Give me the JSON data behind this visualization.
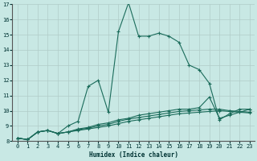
{
  "xlabel": "Humidex (Indice chaleur)",
  "xlim": [
    -0.5,
    23.5
  ],
  "ylim": [
    8,
    17
  ],
  "xticks": [
    0,
    1,
    2,
    3,
    4,
    5,
    6,
    7,
    8,
    9,
    10,
    11,
    12,
    13,
    14,
    15,
    16,
    17,
    18,
    19,
    20,
    21,
    22,
    23
  ],
  "yticks": [
    8,
    9,
    10,
    11,
    12,
    13,
    14,
    15,
    16,
    17
  ],
  "bg_color": "#c8e8e4",
  "line_color": "#1a6b5a",
  "grid_color": "#b0ccc8",
  "lines": [
    {
      "x": [
        0,
        1,
        2,
        3,
        4,
        5,
        6,
        7,
        8,
        9,
        10,
        11,
        12,
        13,
        14,
        15,
        16,
        17,
        18,
        19,
        20,
        21,
        22,
        23
      ],
      "y": [
        8.2,
        8.1,
        8.6,
        8.7,
        8.5,
        9.0,
        9.3,
        11.6,
        12.0,
        9.9,
        15.2,
        17.1,
        14.9,
        14.9,
        15.1,
        14.9,
        14.5,
        13.0,
        12.7,
        11.8,
        9.4,
        9.8,
        10.1,
        10.1
      ]
    },
    {
      "x": [
        0,
        1,
        2,
        3,
        4,
        5,
        6,
        7,
        8,
        9,
        10,
        11,
        12,
        13,
        14,
        15,
        16,
        17,
        18,
        19,
        20,
        21,
        22,
        23
      ],
      "y": [
        8.2,
        8.1,
        8.6,
        8.7,
        8.5,
        8.6,
        8.8,
        8.9,
        9.1,
        9.2,
        9.4,
        9.5,
        9.7,
        9.8,
        9.9,
        10.0,
        10.1,
        10.1,
        10.2,
        10.9,
        9.5,
        9.7,
        9.9,
        10.1
      ]
    },
    {
      "x": [
        0,
        1,
        2,
        3,
        4,
        5,
        6,
        7,
        8,
        9,
        10,
        11,
        12,
        13,
        14,
        15,
        16,
        17,
        18,
        19,
        20,
        21,
        22,
        23
      ],
      "y": [
        8.2,
        8.1,
        8.6,
        8.7,
        8.5,
        8.6,
        8.75,
        8.85,
        9.0,
        9.1,
        9.3,
        9.45,
        9.55,
        9.65,
        9.75,
        9.85,
        9.95,
        10.0,
        10.05,
        10.1,
        10.1,
        10.0,
        9.95,
        9.9
      ]
    },
    {
      "x": [
        0,
        1,
        2,
        3,
        4,
        5,
        6,
        7,
        8,
        9,
        10,
        11,
        12,
        13,
        14,
        15,
        16,
        17,
        18,
        19,
        20,
        21,
        22,
        23
      ],
      "y": [
        8.2,
        8.1,
        8.6,
        8.7,
        8.5,
        8.6,
        8.7,
        8.8,
        8.9,
        9.0,
        9.15,
        9.3,
        9.4,
        9.5,
        9.6,
        9.7,
        9.8,
        9.85,
        9.9,
        9.95,
        10.0,
        9.95,
        9.9,
        9.85
      ]
    }
  ]
}
